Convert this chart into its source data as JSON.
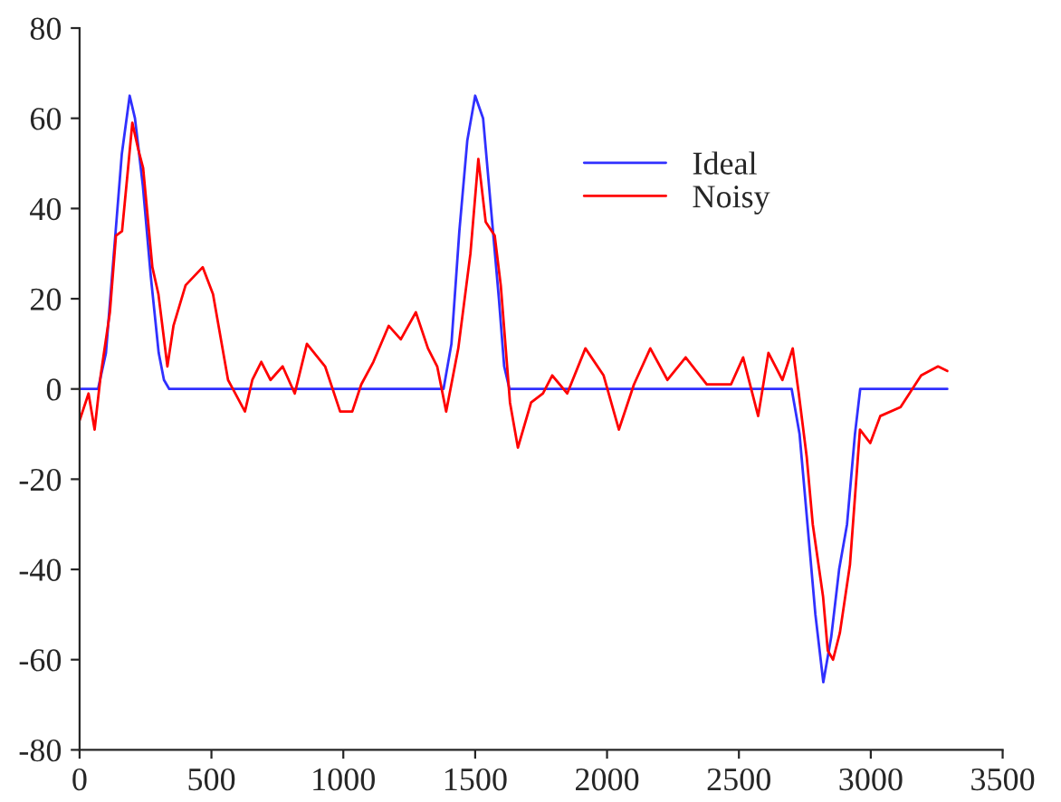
{
  "chart_data": {
    "type": "line",
    "xlim": [
      0,
      3500
    ],
    "ylim": [
      -80,
      80
    ],
    "xticks": [
      0,
      500,
      1000,
      1500,
      2000,
      2500,
      3000,
      3500
    ],
    "yticks": [
      -80,
      -60,
      -40,
      -20,
      0,
      20,
      40,
      60,
      80
    ],
    "grid": false,
    "legend": "top right",
    "marker": "none",
    "line_style": "solid",
    "series": [
      {
        "name": "Ideal",
        "color": "#3030ff",
        "x": [
          0,
          70,
          100,
          130,
          160,
          190,
          210,
          240,
          270,
          300,
          320,
          340,
          1380,
          1410,
          1440,
          1470,
          1500,
          1530,
          1560,
          1590,
          1610,
          1630,
          2700,
          2730,
          2760,
          2790,
          2820,
          2850,
          2880,
          2910,
          2940,
          2960,
          3290
        ],
        "values": [
          0,
          0,
          8,
          30,
          52,
          65,
          60,
          45,
          25,
          8,
          2,
          0,
          0,
          10,
          35,
          55,
          65,
          60,
          40,
          20,
          5,
          0,
          0,
          -10,
          -30,
          -50,
          -65,
          -55,
          -40,
          -30,
          -10,
          0,
          0
        ]
      },
      {
        "name": "Noisy",
        "color": "#ff0000",
        "x": [
          0,
          34,
          57,
          80,
          115,
          138,
          161,
          184,
          200,
          223,
          241,
          276,
          299,
          333,
          356,
          402,
          467,
          506,
          563,
          627,
          655,
          689,
          724,
          770,
          816,
          862,
          931,
          988,
          1034,
          1068,
          1114,
          1172,
          1218,
          1275,
          1321,
          1356,
          1390,
          1436,
          1482,
          1512,
          1540,
          1574,
          1597,
          1632,
          1662,
          1712,
          1757,
          1792,
          1849,
          1918,
          1987,
          2045,
          2102,
          2164,
          2229,
          2298,
          2378,
          2470,
          2516,
          2573,
          2612,
          2665,
          2704,
          2727,
          2757,
          2780,
          2819,
          2837,
          2857,
          2883,
          2921,
          2959,
          2998,
          3036,
          3113,
          3191,
          3255,
          3290
        ],
        "values": [
          -7,
          -1,
          -9,
          3,
          17,
          34,
          35,
          49,
          59,
          53,
          49,
          27,
          21,
          5,
          14,
          23,
          27,
          21,
          2,
          -5,
          2,
          6,
          2,
          5,
          -1,
          10,
          5,
          -5,
          -5,
          1,
          6,
          14,
          11,
          17,
          9,
          5,
          -5,
          9,
          30,
          51,
          37,
          34,
          23,
          -3,
          -13,
          -3,
          -1,
          3,
          -1,
          9,
          3,
          -9,
          1,
          9,
          2,
          7,
          1,
          1,
          7,
          -6,
          8,
          2,
          9,
          -1,
          -15,
          -30,
          -46,
          -58,
          -60,
          -54,
          -39,
          -9,
          -12,
          -6,
          -4,
          3,
          5,
          4
        ]
      }
    ]
  }
}
